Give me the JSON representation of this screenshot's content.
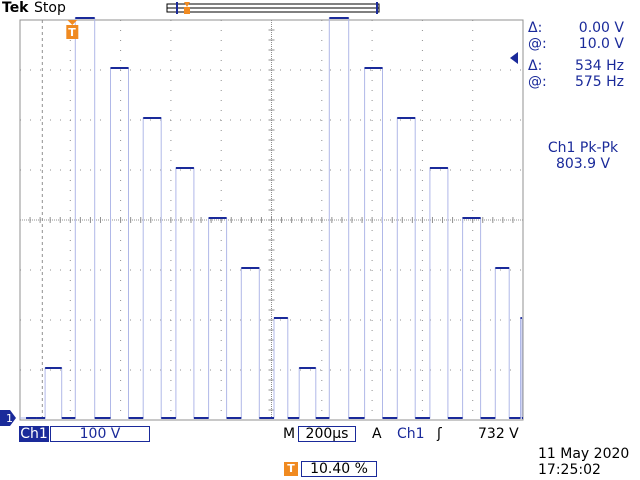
{
  "header": {
    "brand": "Tek",
    "status": "Stop"
  },
  "cursors": {
    "delta_v_label": "Δ:",
    "delta_v_value": "0.00 V",
    "at_v_label": "@:",
    "at_v_value": "10.0 V",
    "delta_f_label": "Δ:",
    "delta_f_value": "534 Hz",
    "at_f_label": "@:",
    "at_f_value": "575 Hz"
  },
  "measurement": {
    "label": "Ch1 Pk-Pk",
    "value": "803.9 V"
  },
  "channel": {
    "tag": "Ch1",
    "scale": "100 V",
    "ground_marker": "1"
  },
  "timebase": {
    "label": "M",
    "value": "200µs"
  },
  "trigger": {
    "mode": "A",
    "source": "Ch1",
    "slope_symbol": "ʃ",
    "level": "732 V",
    "position_icon": "T",
    "position": "10.40 %"
  },
  "datetime": {
    "date": "11 May 2020",
    "time": "17:25:02"
  },
  "colors": {
    "trace": "#1a2a9a",
    "grid": "#909090",
    "trigger_marker": "#f08a20"
  },
  "chart_data": {
    "type": "line",
    "title": "",
    "xlabel": "",
    "ylabel": "",
    "x_divisions": 10,
    "y_divisions": 8,
    "volts_per_div": 100,
    "seconds_per_div": 0.0002,
    "series": [
      {
        "pulses": [
          {
            "t_div": 0.12,
            "level_div": 0.0
          },
          {
            "t_div": 0.5,
            "level_div": 1.0
          },
          {
            "t_div": 1.1,
            "level_div": 8.0
          },
          {
            "t_div": 1.8,
            "level_div": 7.0
          },
          {
            "t_div": 2.45,
            "level_div": 6.0
          },
          {
            "t_div": 3.1,
            "level_div": 5.0
          },
          {
            "t_div": 3.75,
            "level_div": 4.0
          },
          {
            "t_div": 4.4,
            "level_div": 3.0
          },
          {
            "t_div": 5.05,
            "level_div": 2.0
          },
          {
            "t_div": 5.55,
            "level_div": 1.0
          },
          {
            "t_div": 6.15,
            "level_div": 8.0
          },
          {
            "t_div": 6.85,
            "level_div": 7.0
          },
          {
            "t_div": 7.5,
            "level_div": 6.0
          },
          {
            "t_div": 8.15,
            "level_div": 5.0
          },
          {
            "t_div": 8.8,
            "level_div": 4.0
          },
          {
            "t_div": 9.45,
            "level_div": 3.0
          },
          {
            "t_div": 9.95,
            "level_div": 2.0
          }
        ]
      }
    ]
  }
}
